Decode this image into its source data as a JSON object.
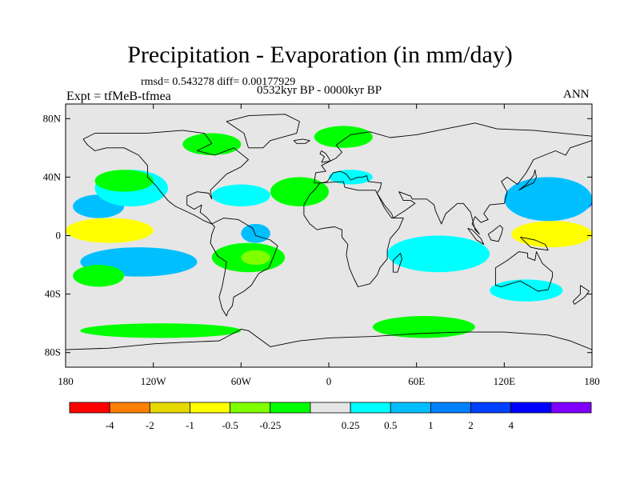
{
  "title": "Precipitation - Evaporation (in mm/day)",
  "stats": "rmsd= 0.543278 diff= 0.00177929",
  "period": "0532kyr BP - 0000kyr BP",
  "experiment": "Expt = tfMeB-tfmea",
  "season": "ANN",
  "map": {
    "lat_ticks": [
      {
        "value": 80,
        "label": "80N"
      },
      {
        "value": 40,
        "label": "40N"
      },
      {
        "value": 0,
        "label": "0"
      },
      {
        "value": -40,
        "label": "40S"
      },
      {
        "value": -80,
        "label": "80S"
      }
    ],
    "lon_ticks": [
      {
        "value": -180,
        "label": "180"
      },
      {
        "value": -120,
        "label": "120W"
      },
      {
        "value": -60,
        "label": "60W"
      },
      {
        "value": 0,
        "label": "0"
      },
      {
        "value": 60,
        "label": "60E"
      },
      {
        "value": 120,
        "label": "120E"
      },
      {
        "value": 180,
        "label": "180"
      }
    ],
    "lat_range": [
      -90,
      90
    ],
    "lon_range": [
      -180,
      180
    ],
    "background_color": "#e6e6e6",
    "regions": [
      {
        "color": "#00bfff",
        "lon": [
          -175,
          -140
        ],
        "lat": [
          12,
          28
        ]
      },
      {
        "color": "#00ffff",
        "lon": [
          -160,
          -110
        ],
        "lat": [
          20,
          45
        ]
      },
      {
        "color": "#00ff00",
        "lon": [
          -160,
          -120
        ],
        "lat": [
          30,
          45
        ]
      },
      {
        "color": "#ffbf00",
        "lon": [
          -180,
          -130
        ],
        "lat": [
          -2,
          8
        ]
      },
      {
        "color": "#ffff00",
        "lon": [
          -180,
          -120
        ],
        "lat": [
          -5,
          12
        ]
      },
      {
        "color": "#0040ff",
        "lon": [
          -160,
          -110
        ],
        "lat": [
          -25,
          -10
        ]
      },
      {
        "color": "#00bfff",
        "lon": [
          -170,
          -90
        ],
        "lat": [
          -28,
          -8
        ]
      },
      {
        "color": "#00ff00",
        "lon": [
          -175,
          -140
        ],
        "lat": [
          -35,
          -20
        ]
      },
      {
        "color": "#ff8000",
        "lon": [
          135,
          175
        ],
        "lat": [
          -5,
          5
        ]
      },
      {
        "color": "#ffff00",
        "lon": [
          125,
          180
        ],
        "lat": [
          -8,
          10
        ]
      },
      {
        "color": "#0040ff",
        "lon": [
          140,
          180
        ],
        "lat": [
          15,
          30
        ]
      },
      {
        "color": "#00bfff",
        "lon": [
          120,
          180
        ],
        "lat": [
          10,
          40
        ]
      },
      {
        "color": "#00bfff",
        "lon": [
          50,
          95
        ],
        "lat": [
          -15,
          -2
        ]
      },
      {
        "color": "#00ffff",
        "lon": [
          40,
          110
        ],
        "lat": [
          -25,
          0
        ]
      },
      {
        "color": "#00bfff",
        "lon": [
          -60,
          -40
        ],
        "lat": [
          -5,
          8
        ]
      },
      {
        "color": "#00ff00",
        "lon": [
          -80,
          -30
        ],
        "lat": [
          -25,
          -5
        ]
      },
      {
        "color": "#80ff00",
        "lon": [
          -60,
          -40
        ],
        "lat": [
          -20,
          -10
        ]
      },
      {
        "color": "#00ff00",
        "lon": [
          -40,
          0
        ],
        "lat": [
          20,
          40
        ]
      },
      {
        "color": "#00ffff",
        "lon": [
          -80,
          -40
        ],
        "lat": [
          20,
          35
        ]
      },
      {
        "color": "#00ffff",
        "lon": [
          0,
          30
        ],
        "lat": [
          35,
          45
        ]
      },
      {
        "color": "#00ff00",
        "lon": [
          -100,
          -60
        ],
        "lat": [
          55,
          70
        ]
      },
      {
        "color": "#00ff00",
        "lon": [
          -10,
          30
        ],
        "lat": [
          60,
          75
        ]
      },
      {
        "color": "#00ff00",
        "lon": [
          -170,
          -60
        ],
        "lat": [
          -70,
          -60
        ]
      },
      {
        "color": "#00ff00",
        "lon": [
          30,
          100
        ],
        "lat": [
          -70,
          -55
        ]
      },
      {
        "color": "#00ffff",
        "lon": [
          110,
          160
        ],
        "lat": [
          -45,
          -30
        ]
      }
    ]
  },
  "colorbar": {
    "colors": [
      "#ff0000",
      "#ff8000",
      "#e6d900",
      "#ffff00",
      "#80ff00",
      "#00ff00",
      "#e6e6e6",
      "#00ffff",
      "#00bfff",
      "#0080ff",
      "#0040ff",
      "#0000ff",
      "#8000ff"
    ],
    "labels": [
      "-4",
      "-2",
      "-1",
      "-0.5",
      "-0.25",
      "0.25",
      "0.5",
      "1",
      "2",
      "4"
    ]
  }
}
